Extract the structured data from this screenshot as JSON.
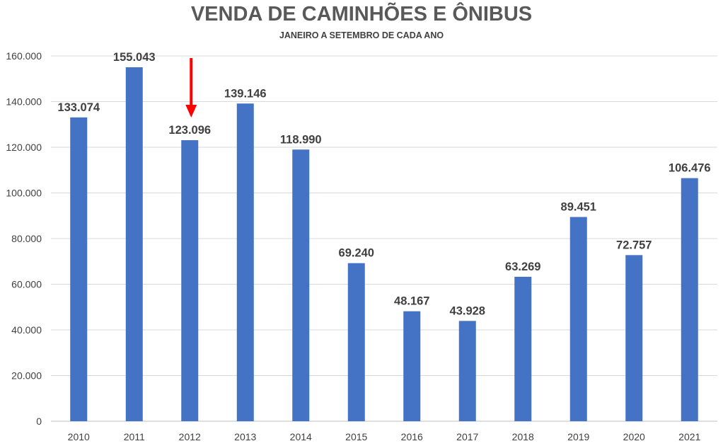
{
  "chart_data": {
    "type": "bar",
    "title": "VENDA DE CAMINHÕES E ÔNIBUS",
    "subtitle": "JANEIRO A SETEMBRO DE CADA ANO",
    "xlabel": "",
    "ylabel": "",
    "categories": [
      "2010",
      "2011",
      "2012",
      "2013",
      "2014",
      "2015",
      "2016",
      "2017",
      "2018",
      "2019",
      "2020",
      "2021"
    ],
    "values": [
      133074,
      155043,
      123096,
      139146,
      118990,
      69240,
      48167,
      43928,
      63269,
      89451,
      72757,
      106476
    ],
    "data_labels": [
      "133.074",
      "155.043",
      "123.096",
      "139.146",
      "118.990",
      "69.240",
      "48.167",
      "43.928",
      "63.269",
      "89.451",
      "72.757",
      "106.476"
    ],
    "ylim": [
      0,
      160000
    ],
    "y_ticks": [
      0,
      20000,
      40000,
      60000,
      80000,
      100000,
      120000,
      140000,
      160000
    ],
    "y_tick_labels": [
      "0",
      "20.000",
      "40.000",
      "60.000",
      "80.000",
      "100.000",
      "120.000",
      "140.000",
      "160.000"
    ],
    "grid": true,
    "bar_color": "#4472C4",
    "annotation": {
      "type": "arrow",
      "color": "#FF0000",
      "points_to_category": "2012"
    }
  }
}
